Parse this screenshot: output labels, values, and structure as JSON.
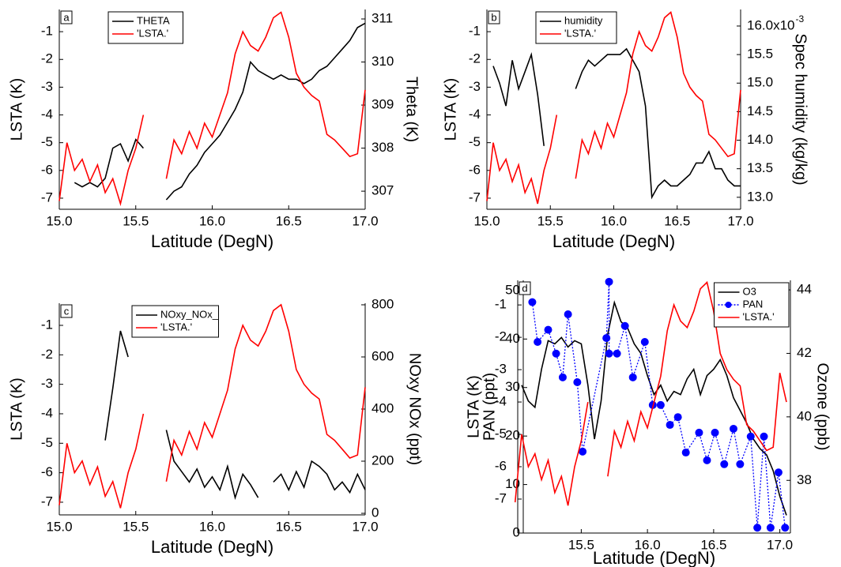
{
  "chart_data": [
    {
      "type": "line",
      "panel_label": "a",
      "x": [
        15,
        15.05,
        15.1,
        15.15,
        15.2,
        15.25,
        15.3,
        15.35,
        15.4,
        15.45,
        15.5,
        15.55,
        15.6,
        15.65,
        15.7,
        15.75,
        15.8,
        15.85,
        15.9,
        15.95,
        16,
        16.05,
        16.1,
        16.15,
        16.2,
        16.25,
        16.3,
        16.35,
        16.4,
        16.45,
        16.5,
        16.55,
        16.6,
        16.65,
        16.7,
        16.75,
        16.8,
        16.85,
        16.9,
        16.95,
        17
      ],
      "xlim": [
        15,
        17
      ],
      "xticks": [
        {
          "value": 15,
          "label": "15.0"
        },
        15.5,
        {
          "value": 16,
          "label": "16.0"
        },
        16.5,
        {
          "value": 17,
          "label": "17.0"
        }
      ],
      "x_label": "Latitude (DegN)",
      "y_label": "LSTA (K)",
      "y2_label": "Theta (K)",
      "ylim": [
        -7.4,
        -0.2
      ],
      "yticks": [
        -7,
        -6,
        -5,
        -4,
        -3,
        -2,
        -1
      ],
      "y2lim": [
        306.58,
        311.22
      ],
      "y2ticks": [
        307,
        308,
        309,
        310,
        311
      ],
      "legend": "upper left",
      "series": [
        {
          "name": "THETA",
          "color": "#000000",
          "axis": "y2",
          "values": [
            null,
            null,
            307.2,
            307.1,
            307.2,
            307.1,
            307.3,
            308.0,
            308.1,
            307.7,
            308.2,
            308.0,
            null,
            null,
            306.8,
            307.0,
            307.1,
            307.4,
            307.6,
            307.9,
            308.1,
            308.3,
            308.6,
            308.9,
            309.3,
            310.0,
            309.8,
            309.7,
            309.6,
            309.7,
            309.6,
            309.6,
            309.5,
            309.6,
            309.8,
            309.9,
            310.1,
            310.3,
            310.5,
            310.8,
            310.9
          ]
        },
        {
          "name": "'LSTA.'",
          "color": "#ff0000",
          "values": [
            -7.1,
            -5.0,
            -6.0,
            -5.6,
            -6.4,
            -5.8,
            -6.8,
            -6.3,
            -7.2,
            -6.0,
            -5.2,
            -4.0,
            null,
            null,
            -6.3,
            -4.9,
            -5.4,
            -4.6,
            -5.2,
            -4.3,
            -4.8,
            -4.0,
            -3.2,
            -1.8,
            -1.0,
            -1.5,
            -1.7,
            -1.2,
            -0.5,
            -0.3,
            -1.2,
            -2.5,
            -3.0,
            -3.3,
            -3.5,
            -4.7,
            -4.9,
            -5.2,
            -5.5,
            -5.4,
            -3.1
          ]
        }
      ]
    },
    {
      "type": "line",
      "panel_label": "b",
      "x": [
        15,
        15.05,
        15.1,
        15.15,
        15.2,
        15.25,
        15.3,
        15.35,
        15.4,
        15.45,
        15.5,
        15.55,
        15.6,
        15.65,
        15.7,
        15.75,
        15.8,
        15.85,
        15.9,
        15.95,
        16,
        16.05,
        16.1,
        16.15,
        16.2,
        16.25,
        16.3,
        16.35,
        16.4,
        16.45,
        16.5,
        16.55,
        16.6,
        16.65,
        16.7,
        16.75,
        16.8,
        16.85,
        16.9,
        16.95,
        17
      ],
      "xlim": [
        15,
        17
      ],
      "xticks": [
        {
          "value": 15,
          "label": "15.0"
        },
        15.5,
        {
          "value": 16,
          "label": "16.0"
        },
        16.5,
        {
          "value": 17,
          "label": "17.0"
        }
      ],
      "x_label": "Latitude (DegN)",
      "y_label": "LSTA (K)",
      "y2_label": "Spec humidity (kg/kg)",
      "ylim": [
        -7.4,
        -0.2
      ],
      "yticks": [
        -7,
        -6,
        -5,
        -4,
        -3,
        -2,
        -1
      ],
      "y2lim": [
        12.79,
        16.29
      ],
      "y2ticks": [
        {
          "value": 13,
          "label": "13.0"
        },
        13.5,
        {
          "value": 14,
          "label": "14.0"
        },
        14.5,
        {
          "value": 15,
          "label": "15.0"
        },
        15.5,
        {
          "value": 16,
          "label": "16.0x10"
        }
      ],
      "y2_exponent": "-3",
      "legend": "upper left",
      "series": [
        {
          "name": "humidity",
          "color": "#000000",
          "axis": "y2",
          "values": [
            null,
            15.3,
            15.0,
            14.6,
            15.4,
            14.9,
            15.2,
            15.5,
            14.8,
            13.9,
            null,
            null,
            null,
            null,
            14.9,
            15.2,
            15.4,
            15.3,
            15.4,
            15.5,
            15.5,
            15.5,
            15.6,
            15.4,
            15.2,
            14.6,
            13.0,
            13.2,
            13.3,
            13.2,
            13.2,
            13.3,
            13.4,
            13.6,
            13.6,
            13.8,
            13.5,
            13.5,
            13.3,
            13.2,
            13.2
          ]
        },
        {
          "name": "'LSTA.'",
          "color": "#ff0000",
          "values": [
            -7.1,
            -5.0,
            -6.0,
            -5.6,
            -6.4,
            -5.8,
            -6.8,
            -6.3,
            -7.2,
            -6.0,
            -5.2,
            -4.0,
            null,
            null,
            -6.3,
            -4.9,
            -5.4,
            -4.6,
            -5.2,
            -4.3,
            -4.8,
            -4.0,
            -3.2,
            -1.8,
            -1.0,
            -1.5,
            -1.7,
            -1.2,
            -0.5,
            -0.3,
            -1.2,
            -2.5,
            -3.0,
            -3.3,
            -3.5,
            -4.7,
            -4.9,
            -5.2,
            -5.5,
            -5.4,
            -3.1
          ]
        }
      ]
    },
    {
      "type": "line",
      "panel_label": "c",
      "x": [
        15,
        15.05,
        15.1,
        15.15,
        15.2,
        15.25,
        15.3,
        15.35,
        15.4,
        15.45,
        15.5,
        15.55,
        15.6,
        15.65,
        15.7,
        15.75,
        15.8,
        15.85,
        15.9,
        15.95,
        16,
        16.05,
        16.1,
        16.15,
        16.2,
        16.25,
        16.3,
        16.35,
        16.4,
        16.45,
        16.5,
        16.55,
        16.6,
        16.65,
        16.7,
        16.75,
        16.8,
        16.85,
        16.9,
        16.95,
        17
      ],
      "xlim": [
        15,
        17
      ],
      "xticks": [
        {
          "value": 15,
          "label": "15.0"
        },
        15.5,
        {
          "value": 16,
          "label": "16.0"
        },
        16.5,
        {
          "value": 17,
          "label": "17.0"
        }
      ],
      "x_label": "Latitude (DegN)",
      "y_label": "LSTA (K)",
      "y2_label": "NOxy NOx (ppt)",
      "ylim": [
        -7.43,
        -0.25
      ],
      "yticks": [
        -7,
        -6,
        -5,
        -4,
        -3,
        -2,
        -1
      ],
      "y2lim": [
        -6,
        806
      ],
      "y2ticks": [
        0,
        200,
        400,
        600,
        800
      ],
      "legend": "upper left",
      "series": [
        {
          "name": "NOxy_NOx_",
          "color": "#000000",
          "axis": "y2",
          "values": [
            null,
            null,
            null,
            null,
            null,
            null,
            280,
            480,
            700,
            600,
            null,
            null,
            null,
            null,
            320,
            200,
            160,
            120,
            170,
            100,
            140,
            90,
            180,
            60,
            150,
            110,
            60,
            null,
            120,
            150,
            90,
            160,
            100,
            200,
            180,
            150,
            90,
            120,
            80,
            150,
            90
          ]
        },
        {
          "name": "'LSTA.'",
          "color": "#ff0000",
          "values": [
            -7.1,
            -5.0,
            -6.0,
            -5.6,
            -6.4,
            -5.8,
            -6.8,
            -6.3,
            -7.2,
            -6.0,
            -5.2,
            -4.0,
            null,
            null,
            -6.3,
            -4.9,
            -5.4,
            -4.6,
            -5.2,
            -4.3,
            -4.8,
            -4.0,
            -3.2,
            -1.8,
            -1.0,
            -1.5,
            -1.7,
            -1.2,
            -0.5,
            -0.3,
            -1.2,
            -2.5,
            -3.0,
            -3.3,
            -3.5,
            -4.7,
            -4.9,
            -5.2,
            -5.5,
            -5.4,
            -3.1
          ]
        }
      ]
    },
    {
      "type": "line",
      "panel_label": "d",
      "x": [
        15,
        15.05,
        15.1,
        15.15,
        15.2,
        15.25,
        15.3,
        15.35,
        15.4,
        15.45,
        15.5,
        15.55,
        15.6,
        15.65,
        15.7,
        15.75,
        15.8,
        15.85,
        15.9,
        15.95,
        16,
        16.05,
        16.1,
        16.15,
        16.2,
        16.25,
        16.3,
        16.35,
        16.4,
        16.45,
        16.5,
        16.55,
        16.6,
        16.65,
        16.7,
        16.75,
        16.8,
        16.85,
        16.9,
        16.95,
        17,
        17.05
      ],
      "xlim": [
        15.02,
        17.08
      ],
      "xticks": [
        15.5,
        {
          "value": 16,
          "label": "16.0"
        },
        16.5,
        {
          "value": 17,
          "label": "17.0"
        }
      ],
      "x_label": "Latitude (DegN)",
      "y_label": "LSTA (K)",
      "y2_label": "Ozone (ppb)",
      "y3_label": "PAN (ppt)",
      "ylim": [
        -8.05,
        -0.24
      ],
      "yticks": [
        -7,
        -6,
        -5,
        -4,
        -3,
        -2,
        -1
      ],
      "y2lim": [
        36.34,
        44.3
      ],
      "y2ticks": [
        38,
        40,
        42,
        44
      ],
      "y3lim": [
        0,
        52.1
      ],
      "y3ticks": [
        0,
        10,
        20,
        30,
        40,
        50
      ],
      "legend": "upper right",
      "series": [
        {
          "name": "O3",
          "color": "#000000",
          "axis": "y2",
          "values": [
            null,
            41.0,
            40.5,
            40.3,
            41.5,
            42.4,
            42.3,
            42.5,
            42.2,
            42.4,
            42.3,
            41.0,
            39.3,
            40.5,
            42.6,
            43.6,
            43.0,
            42.8,
            42.3,
            42.0,
            41.3,
            40.7,
            41.0,
            40.5,
            40.8,
            40.7,
            41.2,
            41.5,
            40.7,
            41.3,
            41.5,
            41.8,
            41.3,
            40.6,
            40.2,
            39.8,
            39.3,
            39.0,
            38.8,
            38.3,
            37.5,
            36.9
          ]
        },
        {
          "name": "PAN",
          "color": "#0000ff",
          "axis": "y3",
          "marker": "circle",
          "linestyle": "dotted",
          "x": [
            15.13,
            15.17,
            15.25,
            15.31,
            15.36,
            15.4,
            15.47,
            15.51,
            15.69,
            15.71,
            15.71,
            15.77,
            15.83,
            15.89,
            15.98,
            16.04,
            16.1,
            16.17,
            16.23,
            16.29,
            16.39,
            16.45,
            16.51,
            16.58,
            16.65,
            16.7,
            16.78,
            16.83,
            16.88,
            16.93,
            16.99,
            17.04
          ],
          "values": [
            47.6,
            39.4,
            41.9,
            37.0,
            32.1,
            45.1,
            31.1,
            16.8,
            40.2,
            51.8,
            37.0,
            37.0,
            42.7,
            32.1,
            39.4,
            26.4,
            26.4,
            22.3,
            23.9,
            16.6,
            20.7,
            15.0,
            20.7,
            14.2,
            21.5,
            14.2,
            19.9,
            1.1,
            19.9,
            1.1,
            12.5,
            1.1
          ]
        },
        {
          "name": "'LSTA.'",
          "color": "#ff0000",
          "values": [
            -7.1,
            -5.0,
            -6.0,
            -5.6,
            -6.4,
            -5.8,
            -6.8,
            -6.3,
            -7.2,
            -6.0,
            -5.2,
            -4.0,
            null,
            null,
            -6.3,
            -4.9,
            -5.4,
            -4.6,
            -5.2,
            -4.3,
            -4.8,
            -4.0,
            -3.2,
            -1.8,
            -1.0,
            -1.5,
            -1.7,
            -1.2,
            -0.5,
            -0.3,
            -1.2,
            -2.5,
            -3.0,
            -3.3,
            -3.5,
            -4.7,
            -4.9,
            -5.2,
            -5.5,
            -5.4,
            -3.1,
            -4.0
          ]
        }
      ]
    }
  ]
}
